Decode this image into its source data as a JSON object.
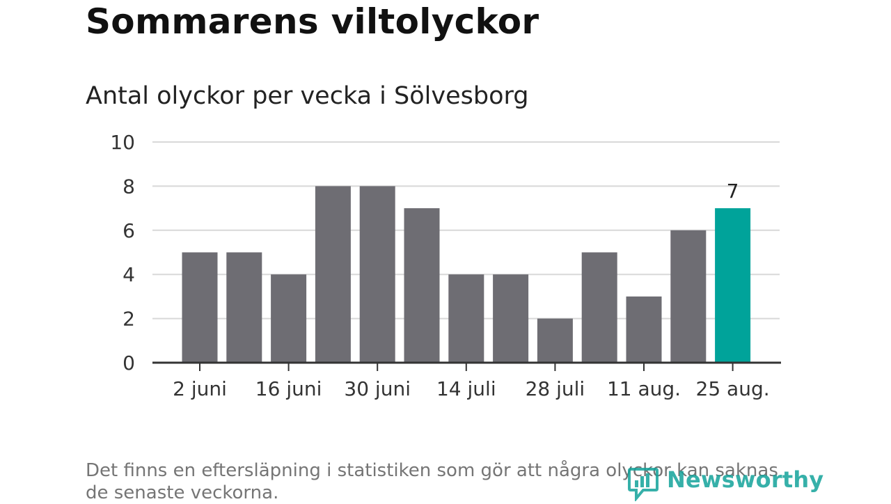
{
  "title": "Sommarens viltolyckor",
  "subtitle": "Antal olyckor per vecka i Sölvesborg",
  "footnote": "Det finns en eftersläpning i statistiken som gör att några olyckor kan saknas de senaste veckorna.",
  "brand": "Newsworthy",
  "colors": {
    "bar": "#6e6d73",
    "highlight": "#00a39a",
    "brand": "#13a39b"
  },
  "chart_data": {
    "type": "bar",
    "title": "Antal olyckor per vecka i Sölvesborg",
    "xlabel": "",
    "ylabel": "",
    "ylim": [
      0,
      10
    ],
    "yticks": [
      0,
      2,
      4,
      6,
      8,
      10
    ],
    "grid": true,
    "values": [
      5,
      5,
      4,
      8,
      8,
      7,
      4,
      4,
      2,
      5,
      3,
      6,
      7
    ],
    "tick_labels": [
      "2 juni",
      "16 juni",
      "30 juni",
      "14 juli",
      "28 juli",
      "11 aug.",
      "25 aug."
    ],
    "tick_bar_index": [
      0,
      2,
      4,
      6,
      8,
      10,
      12
    ],
    "highlight_index": 12,
    "data_labels": [
      {
        "index": 12,
        "text": "7"
      }
    ]
  }
}
